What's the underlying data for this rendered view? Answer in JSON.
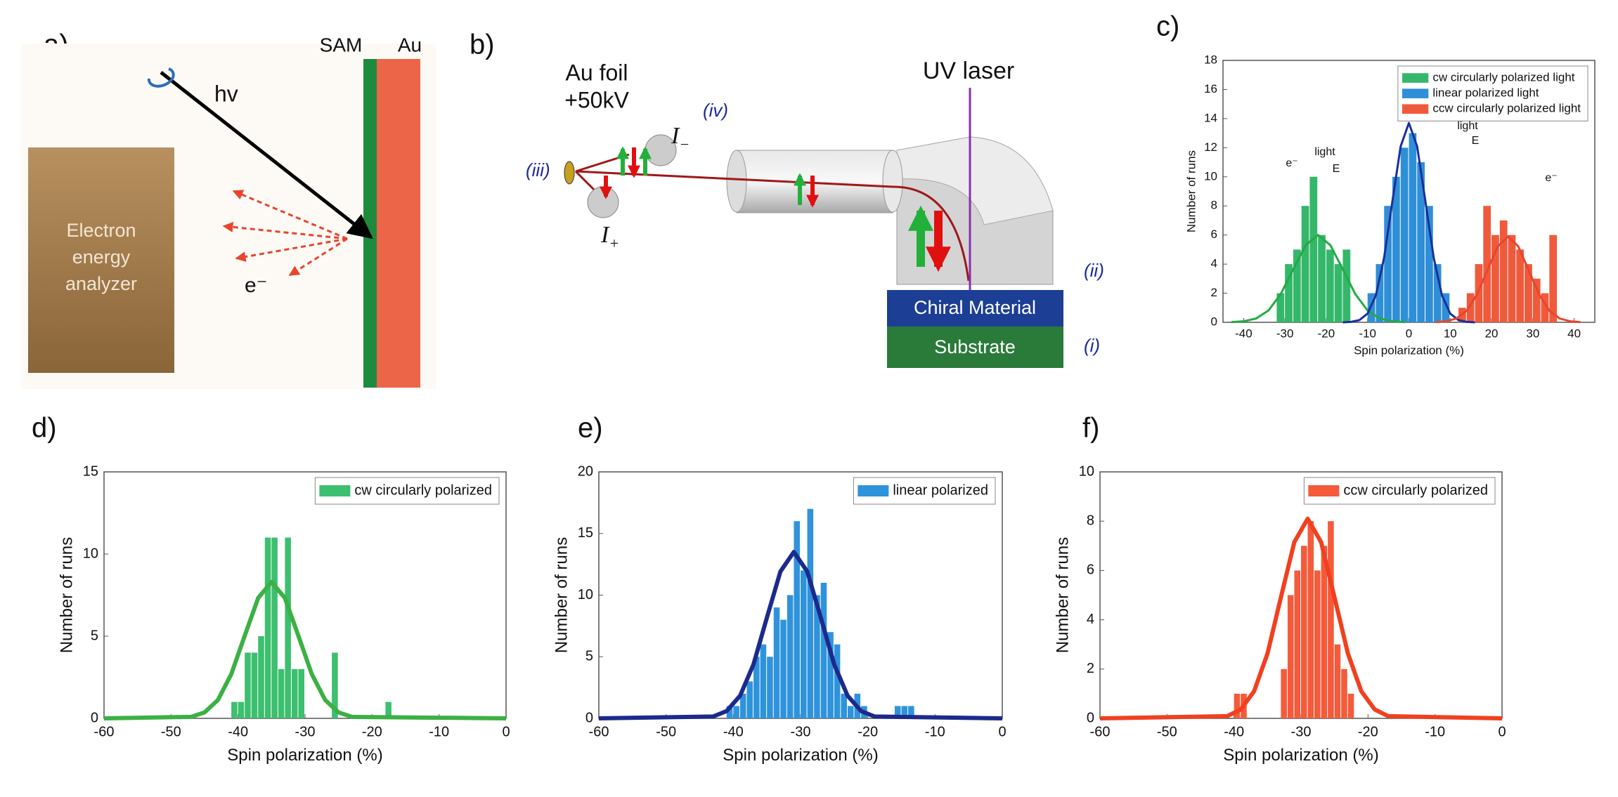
{
  "panel_labels": [
    "a)",
    "b)",
    "c)",
    "d)",
    "e)",
    "f)"
  ],
  "diagram_a": {
    "sam": "SAM",
    "au": "Au",
    "photon": "hv",
    "electron": "e⁻",
    "analyzer": [
      "Electron",
      "energy",
      "analyzer"
    ]
  },
  "diagram_b": {
    "uv_laser": "UV laser",
    "chiral_material": "Chiral Material",
    "substrate": "Substrate",
    "foil": "Au foil",
    "voltage": "+50kV",
    "detector_minus": {
      "symbol": "I",
      "sub": "−"
    },
    "detector_plus": {
      "symbol": "I",
      "sub": "+"
    },
    "markers": [
      "(i)",
      "(ii)",
      "(iii)",
      "(iv)"
    ]
  },
  "chart_data": [
    {
      "type": "histogram",
      "y_label": "Number of runs",
      "x_label": "Spin polarization (%)",
      "xlim": [
        -45,
        45
      ],
      "xticks": [
        -40,
        -30,
        -20,
        -10,
        0,
        10,
        20,
        30,
        40
      ],
      "ylim": [
        0,
        18
      ],
      "yticks": [
        0,
        2,
        4,
        6,
        8,
        10,
        12,
        14,
        16,
        18
      ],
      "legend": "upper right",
      "series": [
        {
          "name": "cw circularly polarized light",
          "color": "#35b76a",
          "bins": [
            -32,
            -30,
            -28,
            -26,
            -24,
            -22,
            -20,
            -18,
            -16,
            -14
          ],
          "values": [
            2,
            4,
            5,
            8,
            10,
            6,
            5,
            4,
            5
          ]
        },
        {
          "name": "linear polarized light",
          "color": "#2f8fd6",
          "bins": [
            -10,
            -8,
            -6,
            -4,
            -2,
            0,
            2,
            4,
            6,
            8,
            10
          ],
          "values": [
            2,
            4,
            8,
            10,
            12,
            13,
            11,
            8,
            4,
            2
          ]
        },
        {
          "name": "ccw circularly polarized light",
          "color": "#f05a3c",
          "bins": [
            12,
            14,
            16,
            18,
            20,
            22,
            24,
            26,
            28,
            30,
            32,
            34,
            36
          ],
          "values": [
            1,
            2,
            4,
            8,
            6,
            7,
            6,
            5,
            4,
            3,
            2,
            6
          ]
        }
      ],
      "fit_lines": [
        {
          "color": "#22aa44",
          "x": [
            -43,
            -40,
            -37,
            -34,
            -31,
            -28,
            -25,
            -22,
            -19,
            -16,
            -13,
            -10,
            -7,
            -4,
            -1
          ],
          "values": [
            0.01,
            0.07,
            0.26,
            0.81,
            1.95,
            3.64,
            5.3,
            6,
            5.3,
            3.64,
            1.95,
            0.81,
            0.26,
            0.07,
            0.01
          ]
        },
        {
          "color": "#1a2f9e",
          "x": [
            -16,
            -14,
            -12,
            -10,
            -8,
            -6,
            -4,
            -2,
            0,
            2,
            4,
            6,
            8,
            10,
            12,
            14,
            16
          ],
          "values": [
            0,
            0.03,
            0.15,
            0.6,
            1.85,
            4.45,
            8.31,
            12.09,
            13.7,
            12.09,
            8.31,
            4.45,
            1.85,
            0.6,
            0.15,
            0.03,
            0
          ]
        },
        {
          "color": "#e8452c",
          "x": [
            6.5,
            9,
            11.5,
            14,
            16.5,
            19,
            21.5,
            24,
            26.5,
            29,
            31.5,
            34,
            36.5,
            39,
            41.5
          ],
          "values": [
            0.01,
            0.07,
            0.26,
            0.8,
            1.92,
            3.58,
            5.21,
            5.9,
            5.21,
            3.58,
            1.92,
            0.8,
            0.26,
            0.07,
            0.01
          ]
        }
      ],
      "annotations": [
        "e⁻",
        "light",
        "E",
        "light",
        "E",
        "e⁻"
      ]
    },
    {
      "type": "histogram",
      "y_label": "Number of runs",
      "x_label": "Spin polarization (%)",
      "xlim": [
        -60,
        0
      ],
      "xticks": [
        -60,
        -50,
        -40,
        -30,
        -20,
        -10,
        0
      ],
      "ylim": [
        0,
        15
      ],
      "yticks": [
        0,
        5,
        10,
        15
      ],
      "legend": "upper right",
      "series": [
        {
          "name": "cw circularly polarized",
          "color": "#3cbf6e",
          "bins": [
            -41,
            -40,
            -39,
            -38,
            -37,
            -36,
            -35,
            -34,
            -33,
            -32,
            -31,
            -30,
            -29,
            -28,
            -27,
            -26,
            -25,
            -24,
            -23,
            -22,
            -21,
            -20,
            -19,
            -18,
            -17
          ],
          "values": [
            1,
            1,
            4,
            4,
            5,
            11,
            11,
            3,
            11,
            3,
            3,
            0,
            0,
            0,
            0,
            4,
            0,
            0,
            0,
            0,
            0,
            0,
            0,
            1
          ]
        }
      ],
      "fit_lines": [
        {
          "color": "#3cb043",
          "x": [
            -60,
            -47,
            -45,
            -43,
            -41,
            -39,
            -37,
            -35,
            -33,
            -31,
            -29,
            -27,
            -25,
            -23,
            0
          ],
          "values": [
            0,
            0.09,
            0.36,
            1.12,
            2.7,
            5.03,
            7.32,
            8.3,
            7.32,
            5.03,
            2.7,
            1.12,
            0.36,
            0.09,
            0
          ]
        }
      ]
    },
    {
      "type": "histogram",
      "y_label": "Number of runs",
      "x_label": "Spin polarization (%)",
      "xlim": [
        -60,
        0
      ],
      "xticks": [
        -60,
        -50,
        -40,
        -30,
        -20,
        -10,
        0
      ],
      "ylim": [
        0,
        20
      ],
      "yticks": [
        0,
        5,
        10,
        15,
        20
      ],
      "legend": "upper right",
      "series": [
        {
          "name": "linear polarized",
          "color": "#2f93dc",
          "bins": [
            -41,
            -40,
            -39,
            -38,
            -37,
            -36,
            -35,
            -34,
            -33,
            -32,
            -31,
            -30,
            -29,
            -28,
            -27,
            -26,
            -25,
            -24,
            -23,
            -22,
            -21,
            -20,
            -19,
            -18,
            -17,
            -16,
            -15,
            -14,
            -13
          ],
          "values": [
            1,
            1,
            2,
            3,
            5,
            6,
            5,
            9,
            8,
            10,
            16,
            12,
            17,
            10,
            11,
            7,
            6,
            2,
            1,
            2,
            1,
            0,
            0,
            0,
            0,
            1,
            1,
            1
          ]
        }
      ],
      "fit_lines": [
        {
          "color": "#1c2a8c",
          "x": [
            -60,
            -43,
            -41,
            -39,
            -37,
            -35,
            -33,
            -31,
            -29,
            -27,
            -25,
            -23,
            -21,
            -19,
            0
          ],
          "values": [
            0,
            0.15,
            0.59,
            1.83,
            4.38,
            8.19,
            11.91,
            13.5,
            11.91,
            8.19,
            4.38,
            1.83,
            0.59,
            0.15,
            0
          ]
        }
      ]
    },
    {
      "type": "histogram",
      "y_label": "Number of runs",
      "x_label": "Spin polarization (%)",
      "xlim": [
        -60,
        0
      ],
      "xticks": [
        -60,
        -50,
        -40,
        -30,
        -20,
        -10,
        0
      ],
      "ylim": [
        0,
        10
      ],
      "yticks": [
        0,
        2,
        4,
        6,
        8,
        10
      ],
      "legend": "upper right",
      "series": [
        {
          "name": "ccw circularly polarized",
          "color": "#f55a3a",
          "bins": [
            -40,
            -39,
            -38,
            -37,
            -36,
            -35,
            -34,
            -33,
            -32,
            -31,
            -30,
            -29,
            -28,
            -27,
            -26,
            -25,
            -24,
            -23,
            -22
          ],
          "values": [
            1,
            1,
            0,
            0,
            0,
            0,
            0,
            2,
            5,
            6,
            7,
            8,
            6,
            7,
            8,
            3,
            2,
            1
          ]
        }
      ],
      "fit_lines": [
        {
          "color": "#f04020",
          "x": [
            -60,
            -41,
            -39,
            -37,
            -35,
            -33,
            -31,
            -29,
            -27,
            -25,
            -23,
            -21,
            -19,
            -17,
            0
          ],
          "values": [
            0,
            0.09,
            0.36,
            1.1,
            2.63,
            4.91,
            7.15,
            8.1,
            7.15,
            4.91,
            2.63,
            1.1,
            0.36,
            0.09,
            0
          ]
        }
      ]
    }
  ]
}
